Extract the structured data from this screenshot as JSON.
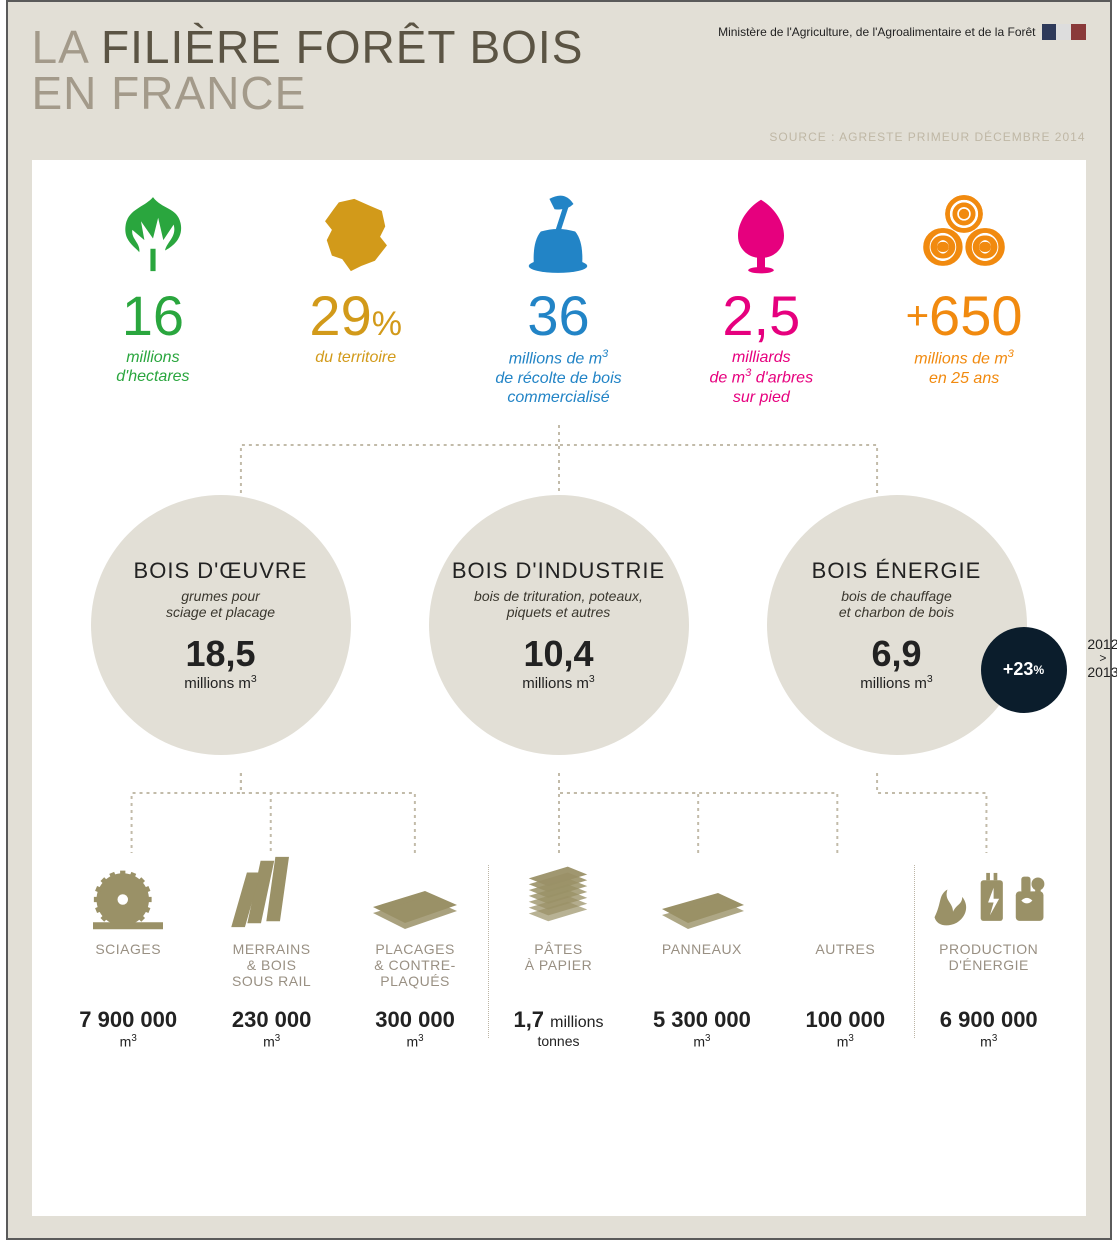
{
  "colors": {
    "bg": "#e2dfd6",
    "green": "#2aa63e",
    "gold": "#d29a1a",
    "blue": "#2284c6",
    "pink": "#e6007e",
    "orange": "#f18a0f",
    "olive": "#9a9167",
    "grey_label": "#999083",
    "dark": "#0b1d2c"
  },
  "header": {
    "la": "LA ",
    "title1": "FILIÈRE FORÊT BOIS",
    "title2": "EN FRANCE",
    "ministry": "Ministère de l'Agriculture, de l'Agroalimentaire et de la Forêt",
    "source": "SOURCE : AGRESTE PRIMEUR DÉCEMBRE 2014"
  },
  "stats": [
    {
      "icon": "leaf",
      "color": "#2aa63e",
      "value": "16",
      "suffix": "",
      "prefix": "",
      "label": "millions<br>d'hectares"
    },
    {
      "icon": "france",
      "color": "#d29a1a",
      "value": "29",
      "suffix": "%",
      "prefix": "",
      "label": "du territoire"
    },
    {
      "icon": "axe",
      "color": "#2284c6",
      "value": "36",
      "suffix": "",
      "prefix": "",
      "label": "millions de m<sup>3</sup><br>de récolte de bois<br>commercialisé"
    },
    {
      "icon": "tree",
      "color": "#e6007e",
      "value": "2,5",
      "suffix": "",
      "prefix": "",
      "label": "milliards<br>de m<sup>3</sup> d'arbres<br>sur pied"
    },
    {
      "icon": "logs",
      "color": "#f18a0f",
      "value": "650",
      "suffix": "",
      "prefix": "+",
      "label": "millions de m<sup>3</sup><br>en 25 ans"
    }
  ],
  "circles": [
    {
      "title": "BOIS D'ŒUVRE",
      "sub": "grumes pour<br>sciage et placage",
      "value": "18,5",
      "unit": "millions m<sup>3</sup>"
    },
    {
      "title": "BOIS D'INDUSTRIE",
      "sub": "bois de trituration, poteaux,<br>piquets et autres",
      "value": "10,4",
      "unit": "millions m<sup>3</sup>"
    },
    {
      "title": "BOIS ÉNERGIE",
      "sub": "bois de chauffage<br>et charbon de bois",
      "value": "6,9",
      "unit": "millions m<sup>3</sup>",
      "badge": "+23",
      "badge_pct": "%",
      "years_top": "2012",
      "years_bot": "2013"
    }
  ],
  "outputs": [
    {
      "icon": "saw",
      "title": "SCIAGES",
      "value": "7 900 000",
      "unit": "m<sup>3</sup>"
    },
    {
      "icon": "planks",
      "title": "MERRAINS<br>& BOIS<br>SOUS RAIL",
      "value": "230 000",
      "unit": "m<sup>3</sup>"
    },
    {
      "icon": "sheets",
      "title": "PLACAGES<br>& CONTRE-<br>PLAQUÉS",
      "value": "300 000",
      "unit": "m<sup>3</sup>"
    },
    {
      "icon": "paper",
      "title": "PÂTES<br>À PAPIER",
      "value": "1,7 <span style=\"font-weight:400;font-size:16px\">millions</span>",
      "unit": "tonnes"
    },
    {
      "icon": "panel",
      "title": "PANNEAUX",
      "value": "5 300 000",
      "unit": "m<sup>3</sup>"
    },
    {
      "icon": "autres",
      "title": "AUTRES",
      "value": "100 000",
      "unit": "m<sup>3</sup>"
    },
    {
      "icon": "energy",
      "title": "PRODUCTION<br>D'ÉNERGIE",
      "value": "6 900 000",
      "unit": "m<sup>3</sup>"
    }
  ],
  "connectors": {
    "top": {
      "stroke": "#c2bba9",
      "dash": "3,4"
    },
    "bottom": {
      "stroke": "#c2bba9",
      "dash": "3,4"
    }
  }
}
